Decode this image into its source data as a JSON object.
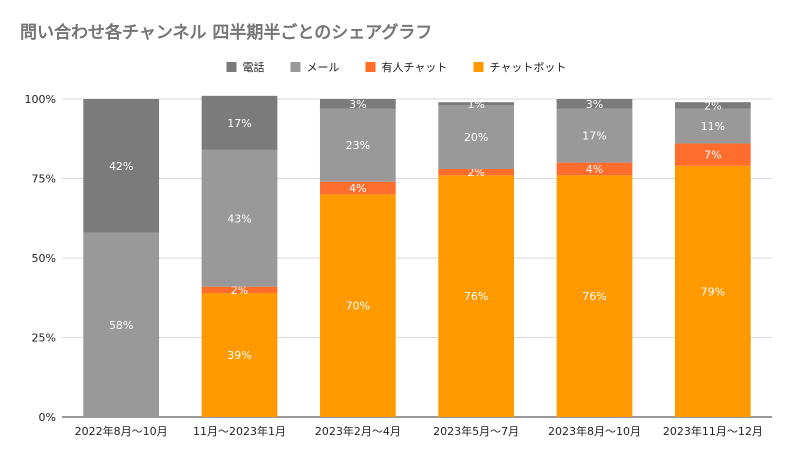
{
  "chart_data": {
    "type": "bar",
    "stacked": true,
    "percent": true,
    "title": "問い合わせ各チャンネル 四半期半ごとのシェアグラフ",
    "categories": [
      "2022年8月～10月",
      "11月～2023年1月",
      "2023年2月～4月",
      "2023年5月～7月",
      "2023年8月～10月",
      "2023年11月～12月"
    ],
    "series": [
      {
        "name": "チャットボット",
        "color": "#ff9900",
        "values": [
          0,
          39,
          70,
          76,
          76,
          79
        ],
        "labels": [
          "",
          "39%",
          "70%",
          "76%",
          "76%",
          "79%"
        ]
      },
      {
        "name": "有人チャット",
        "color": "#ff6d2c",
        "values": [
          0,
          2,
          4,
          2,
          4,
          7
        ],
        "labels": [
          "",
          "2%",
          "4%",
          "2%",
          "4%",
          "7%"
        ]
      },
      {
        "name": "メール",
        "color": "#999999",
        "values": [
          58,
          43,
          23,
          20,
          17,
          11
        ],
        "labels": [
          "58%",
          "43%",
          "23%",
          "20%",
          "17%",
          "11%"
        ]
      },
      {
        "name": "電話",
        "color": "#7b7b7b",
        "values": [
          42,
          17,
          3,
          1,
          3,
          2
        ],
        "labels": [
          "42%",
          "17%",
          "3%",
          "1%",
          "3%",
          "2%"
        ]
      }
    ],
    "legend_order": [
      "電話",
      "メール",
      "有人チャット",
      "チャットボット"
    ],
    "yticks": [
      "0%",
      "25%",
      "50%",
      "75%",
      "100%"
    ],
    "ylim": [
      0,
      100
    ],
    "legend_position": "top",
    "grid": true
  }
}
